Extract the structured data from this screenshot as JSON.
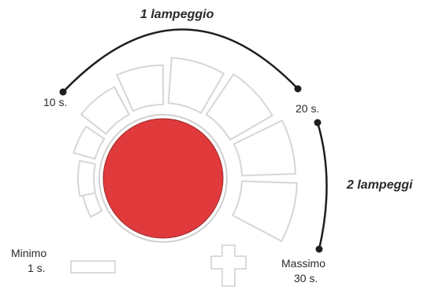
{
  "labels": {
    "arc_top": "1 lampeggio",
    "arc_right": "2 lampeggi",
    "t10": "10 s.",
    "t20": "20 s.",
    "minimo": "Minimo",
    "minimo_val": "1 s.",
    "massimo": "Massimo",
    "massimo_val": "30 s."
  },
  "colors": {
    "knob": "#e03a3c",
    "line": "#1f1f1f",
    "segment": "#d6d6d6",
    "text": "#2a2a2a"
  },
  "icons": [
    "minus-icon",
    "plus-icon"
  ]
}
